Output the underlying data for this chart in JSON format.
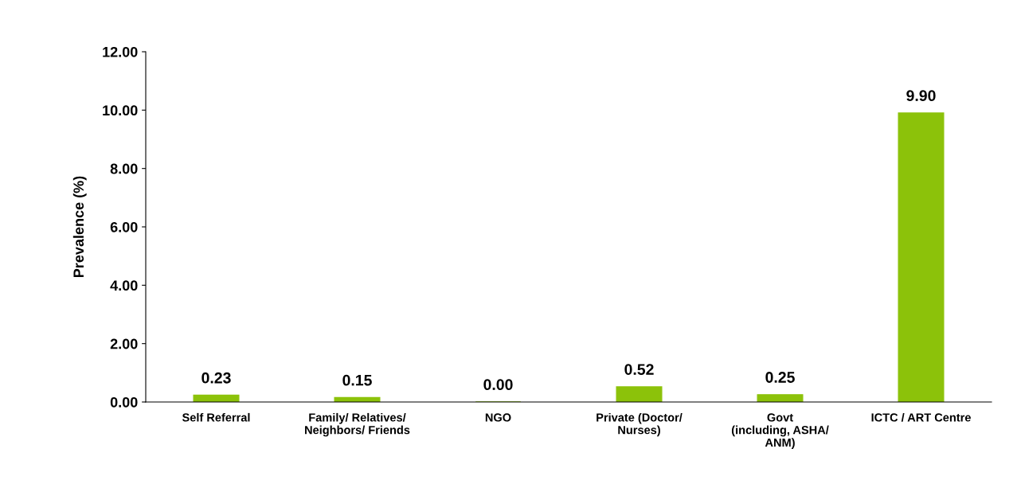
{
  "chart_data": {
    "type": "bar",
    "ylabel": "Prevalence (%)",
    "categories": [
      "Self Referral",
      "Family/ Relatives/\nNeighbors/ Friends",
      "NGO",
      "Private (Doctor/\nNurses)",
      "Govt\n(including, ASHA/\nANM)",
      "ICTC / ART Centre"
    ],
    "values": [
      0.23,
      0.15,
      0.0,
      0.52,
      0.25,
      9.9
    ],
    "value_labels": [
      "0.23",
      "0.15",
      "0.00",
      "0.52",
      "0.25",
      "9.90"
    ],
    "color": "#8cc20a",
    "ylim": [
      0,
      12
    ],
    "yticks": [
      {
        "value": 0,
        "label": "0.00"
      },
      {
        "value": 2,
        "label": "2.00"
      },
      {
        "value": 4,
        "label": "4.00"
      },
      {
        "value": 6,
        "label": "6.00"
      },
      {
        "value": 8,
        "label": "8.00"
      },
      {
        "value": 10,
        "label": "10.00"
      },
      {
        "value": 12,
        "label": "12.00"
      }
    ],
    "grid": false,
    "legend": false
  }
}
